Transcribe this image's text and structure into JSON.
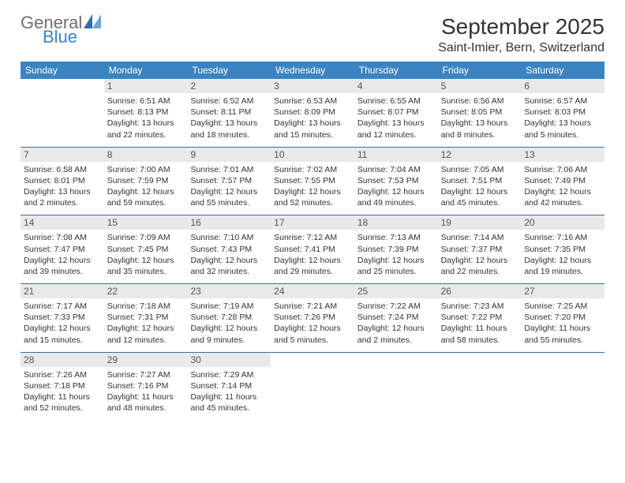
{
  "brand": {
    "word1": "General",
    "word2": "Blue",
    "mark_color": "#2f6fab"
  },
  "title": "September 2025",
  "location": "Saint-Imier, Bern, Switzerland",
  "colors": {
    "header_bg": "#3a84c4",
    "header_text": "#ffffff",
    "daynum_bg": "#e9e9e9",
    "week_divider": "#3a6ea5",
    "body_text": "#333333"
  },
  "day_headers": [
    "Sunday",
    "Monday",
    "Tuesday",
    "Wednesday",
    "Thursday",
    "Friday",
    "Saturday"
  ],
  "weeks": [
    [
      null,
      {
        "n": "1",
        "sr": "6:51 AM",
        "ss": "8:13 PM",
        "dl": "13 hours and 22 minutes."
      },
      {
        "n": "2",
        "sr": "6:52 AM",
        "ss": "8:11 PM",
        "dl": "13 hours and 18 minutes."
      },
      {
        "n": "3",
        "sr": "6:53 AM",
        "ss": "8:09 PM",
        "dl": "13 hours and 15 minutes."
      },
      {
        "n": "4",
        "sr": "6:55 AM",
        "ss": "8:07 PM",
        "dl": "13 hours and 12 minutes."
      },
      {
        "n": "5",
        "sr": "6:56 AM",
        "ss": "8:05 PM",
        "dl": "13 hours and 8 minutes."
      },
      {
        "n": "6",
        "sr": "6:57 AM",
        "ss": "8:03 PM",
        "dl": "13 hours and 5 minutes."
      }
    ],
    [
      {
        "n": "7",
        "sr": "6:58 AM",
        "ss": "8:01 PM",
        "dl": "13 hours and 2 minutes."
      },
      {
        "n": "8",
        "sr": "7:00 AM",
        "ss": "7:59 PM",
        "dl": "12 hours and 59 minutes."
      },
      {
        "n": "9",
        "sr": "7:01 AM",
        "ss": "7:57 PM",
        "dl": "12 hours and 55 minutes."
      },
      {
        "n": "10",
        "sr": "7:02 AM",
        "ss": "7:55 PM",
        "dl": "12 hours and 52 minutes."
      },
      {
        "n": "11",
        "sr": "7:04 AM",
        "ss": "7:53 PM",
        "dl": "12 hours and 49 minutes."
      },
      {
        "n": "12",
        "sr": "7:05 AM",
        "ss": "7:51 PM",
        "dl": "12 hours and 45 minutes."
      },
      {
        "n": "13",
        "sr": "7:06 AM",
        "ss": "7:49 PM",
        "dl": "12 hours and 42 minutes."
      }
    ],
    [
      {
        "n": "14",
        "sr": "7:08 AM",
        "ss": "7:47 PM",
        "dl": "12 hours and 39 minutes."
      },
      {
        "n": "15",
        "sr": "7:09 AM",
        "ss": "7:45 PM",
        "dl": "12 hours and 35 minutes."
      },
      {
        "n": "16",
        "sr": "7:10 AM",
        "ss": "7:43 PM",
        "dl": "12 hours and 32 minutes."
      },
      {
        "n": "17",
        "sr": "7:12 AM",
        "ss": "7:41 PM",
        "dl": "12 hours and 29 minutes."
      },
      {
        "n": "18",
        "sr": "7:13 AM",
        "ss": "7:39 PM",
        "dl": "12 hours and 25 minutes."
      },
      {
        "n": "19",
        "sr": "7:14 AM",
        "ss": "7:37 PM",
        "dl": "12 hours and 22 minutes."
      },
      {
        "n": "20",
        "sr": "7:16 AM",
        "ss": "7:35 PM",
        "dl": "12 hours and 19 minutes."
      }
    ],
    [
      {
        "n": "21",
        "sr": "7:17 AM",
        "ss": "7:33 PM",
        "dl": "12 hours and 15 minutes."
      },
      {
        "n": "22",
        "sr": "7:18 AM",
        "ss": "7:31 PM",
        "dl": "12 hours and 12 minutes."
      },
      {
        "n": "23",
        "sr": "7:19 AM",
        "ss": "7:28 PM",
        "dl": "12 hours and 9 minutes."
      },
      {
        "n": "24",
        "sr": "7:21 AM",
        "ss": "7:26 PM",
        "dl": "12 hours and 5 minutes."
      },
      {
        "n": "25",
        "sr": "7:22 AM",
        "ss": "7:24 PM",
        "dl": "12 hours and 2 minutes."
      },
      {
        "n": "26",
        "sr": "7:23 AM",
        "ss": "7:22 PM",
        "dl": "11 hours and 58 minutes."
      },
      {
        "n": "27",
        "sr": "7:25 AM",
        "ss": "7:20 PM",
        "dl": "11 hours and 55 minutes."
      }
    ],
    [
      {
        "n": "28",
        "sr": "7:26 AM",
        "ss": "7:18 PM",
        "dl": "11 hours and 52 minutes."
      },
      {
        "n": "29",
        "sr": "7:27 AM",
        "ss": "7:16 PM",
        "dl": "11 hours and 48 minutes."
      },
      {
        "n": "30",
        "sr": "7:29 AM",
        "ss": "7:14 PM",
        "dl": "11 hours and 45 minutes."
      },
      null,
      null,
      null,
      null
    ]
  ],
  "labels": {
    "sunrise": "Sunrise:",
    "sunset": "Sunset:",
    "daylight": "Daylight:"
  }
}
